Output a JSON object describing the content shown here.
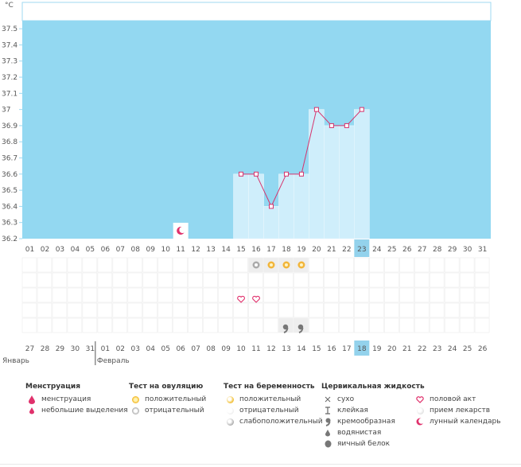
{
  "chart_data": {
    "type": "line",
    "ylabel": "°C",
    "y_ticks": [
      "37.5",
      "37.4",
      "37.3",
      "37.2",
      "37.1",
      "37",
      "36.9",
      "36.8",
      "36.7",
      "36.6",
      "36.5",
      "36.4",
      "36.3",
      "36.2"
    ],
    "ylim": [
      36.2,
      37.55
    ],
    "cycle_days": [
      "01",
      "02",
      "03",
      "04",
      "05",
      "06",
      "07",
      "08",
      "09",
      "10",
      "11",
      "12",
      "13",
      "14",
      "15",
      "16",
      "17",
      "18",
      "19",
      "20",
      "21",
      "22",
      "23",
      "24",
      "25",
      "26",
      "27",
      "28",
      "29",
      "30",
      "31"
    ],
    "highlight_day": "23",
    "series": [
      {
        "x": [
          15,
          16,
          17,
          18,
          19,
          20,
          21,
          22,
          23
        ],
        "y": [
          36.6,
          36.6,
          36.4,
          36.6,
          36.6,
          37.0,
          36.9,
          36.9,
          37.0
        ]
      }
    ],
    "moon_day": 11,
    "neg_ovulation_test_days": [
      16
    ],
    "pos_ovulation_test_days": [
      17,
      18,
      19
    ],
    "intercourse_days": [
      15,
      16
    ],
    "creamy_fluid_days": [
      18,
      19
    ],
    "calendar_dates": [
      "27",
      "28",
      "29",
      "30",
      "31",
      "01",
      "02",
      "03",
      "04",
      "05",
      "06",
      "07",
      "08",
      "09",
      "10",
      "11",
      "12",
      "13",
      "14",
      "15",
      "16",
      "17",
      "18",
      "19",
      "20",
      "21",
      "22",
      "23",
      "24",
      "25",
      "26"
    ],
    "calendar_red_dates": [
      "01",
      "02",
      "08",
      "09",
      "15",
      "16",
      "22",
      "23"
    ],
    "calendar_highlight": "18",
    "months": [
      "Январь",
      "Февраль"
    ],
    "colors": {
      "background": "#93d8f1",
      "bar": "#cfeefb",
      "line": "#d6336c",
      "highlight": "#93d2ec",
      "grid": "#ececec",
      "red_date": "#cc1f4f"
    }
  },
  "legend": {
    "menstruation": {
      "title": "Менструация",
      "items": [
        "менструация",
        "небольшие выделения"
      ]
    },
    "ovulation": {
      "title": "Тест на овуляцию",
      "items": [
        "положительный",
        "отрицательный"
      ]
    },
    "pregnancy": {
      "title": "Тест на беременность",
      "items": [
        "положительный",
        "отрицательный",
        "слабоположительный"
      ]
    },
    "cervical": {
      "title": "Цервикальная жидкость",
      "items": [
        "сухо",
        "клейкая",
        "кремообразная",
        "водянистая",
        "яичный белок"
      ]
    },
    "other": {
      "items": [
        "половой акт",
        "прием лекарств",
        "лунный календарь"
      ]
    }
  }
}
